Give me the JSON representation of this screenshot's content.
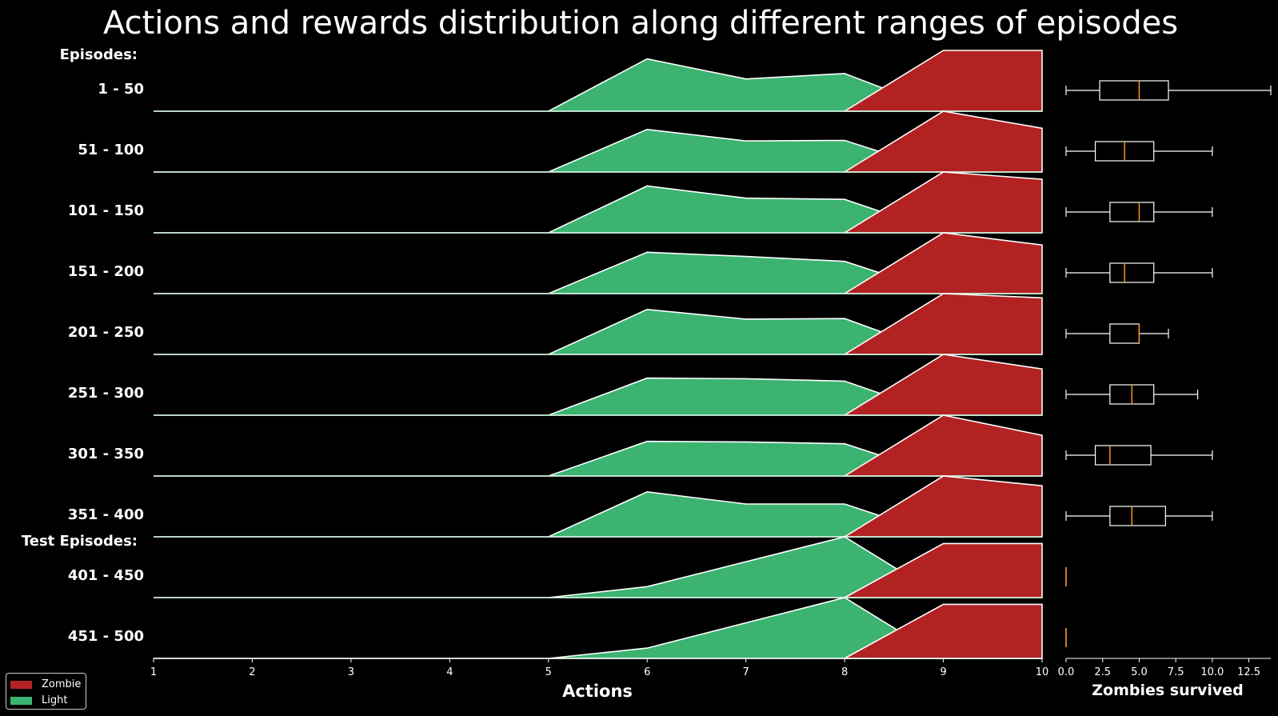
{
  "chart_data": {
    "type": "area",
    "title": "Actions and rewards distribution along different ranges of episodes",
    "xlabel": "Actions",
    "x_ticks": [
      1,
      2,
      3,
      4,
      5,
      6,
      7,
      8,
      9,
      10
    ],
    "xlim": [
      1,
      10
    ],
    "group_headers": {
      "train": "Episodes:",
      "test": "Test Episodes:"
    },
    "colors": {
      "Zombie": "#b22222",
      "Light": "#3cb371",
      "outline": "#ffffff",
      "median": "#ff9f1a",
      "background": "#000000"
    },
    "series_names": [
      "Zombie",
      "Light"
    ],
    "legend_position": "lower-left",
    "ridge_scale_max": 1.0,
    "ridges": [
      {
        "label": "1 - 50",
        "light": {
          "x": [
            1,
            5,
            6,
            7,
            8,
            9,
            10
          ],
          "y": [
            0,
            0,
            0.86,
            0.53,
            0.62,
            0,
            0
          ]
        },
        "zombie": {
          "x": [
            8,
            9,
            10
          ],
          "y": [
            0,
            1.0,
            1.0
          ]
        }
      },
      {
        "label": "51 - 100",
        "light": {
          "x": [
            1,
            5,
            6,
            7,
            8,
            9,
            10
          ],
          "y": [
            0,
            0,
            0.7,
            0.51,
            0.52,
            0,
            0
          ]
        },
        "zombie": {
          "x": [
            8,
            9,
            10
          ],
          "y": [
            0,
            1.0,
            0.72
          ]
        }
      },
      {
        "label": "101 - 150",
        "light": {
          "x": [
            1,
            5,
            6,
            7,
            8,
            9,
            10
          ],
          "y": [
            0,
            0,
            0.77,
            0.57,
            0.55,
            0,
            0
          ]
        },
        "zombie": {
          "x": [
            8,
            9,
            10
          ],
          "y": [
            0,
            1.0,
            0.88
          ]
        }
      },
      {
        "label": "151 - 200",
        "light": {
          "x": [
            1,
            5,
            6,
            7,
            8,
            9,
            10
          ],
          "y": [
            0,
            0,
            0.68,
            0.61,
            0.53,
            0,
            0
          ]
        },
        "zombie": {
          "x": [
            8,
            9,
            10
          ],
          "y": [
            0,
            1.0,
            0.8
          ]
        }
      },
      {
        "label": "201 - 250",
        "light": {
          "x": [
            1,
            5,
            6,
            7,
            8,
            9,
            10
          ],
          "y": [
            0,
            0,
            0.74,
            0.58,
            0.59,
            0,
            0
          ]
        },
        "zombie": {
          "x": [
            8,
            9,
            10
          ],
          "y": [
            0,
            1.0,
            0.93
          ]
        }
      },
      {
        "label": "251 - 300",
        "light": {
          "x": [
            1,
            5,
            6,
            7,
            8,
            9,
            10
          ],
          "y": [
            0,
            0,
            0.61,
            0.6,
            0.56,
            0,
            0
          ]
        },
        "zombie": {
          "x": [
            8,
            9,
            10
          ],
          "y": [
            0,
            1.0,
            0.76
          ]
        }
      },
      {
        "label": "301 - 350",
        "light": {
          "x": [
            1,
            5,
            6,
            7,
            8,
            9,
            10
          ],
          "y": [
            0,
            0,
            0.57,
            0.56,
            0.53,
            0,
            0
          ]
        },
        "zombie": {
          "x": [
            8,
            9,
            10
          ],
          "y": [
            0,
            1.0,
            0.67
          ]
        }
      },
      {
        "label": "351 - 400",
        "light": {
          "x": [
            1,
            5,
            6,
            7,
            8,
            9,
            10
          ],
          "y": [
            0,
            0,
            0.74,
            0.54,
            0.54,
            0,
            0
          ]
        },
        "zombie": {
          "x": [
            8,
            9,
            10
          ],
          "y": [
            0,
            1.0,
            0.84
          ]
        }
      },
      {
        "label": "401 - 450",
        "light": {
          "x": [
            1,
            5,
            6,
            8,
            9,
            10
          ],
          "y": [
            0,
            0,
            0.18,
            1.0,
            0,
            0
          ]
        },
        "zombie": {
          "x": [
            8,
            9,
            10
          ],
          "y": [
            0,
            0.89,
            0.89
          ]
        }
      },
      {
        "label": "451 - 500",
        "light": {
          "x": [
            1,
            5,
            6,
            8,
            9,
            10
          ],
          "y": [
            0,
            0,
            0.17,
            1.0,
            0,
            0
          ]
        },
        "zombie": {
          "x": [
            8,
            9,
            10
          ],
          "y": [
            0,
            0.89,
            0.89
          ]
        }
      }
    ],
    "boxplot": {
      "xlabel": "Zombies survived",
      "x_ticks": [
        0.0,
        2.5,
        5.0,
        7.5,
        10.0,
        12.5
      ],
      "xlim": [
        0,
        14
      ],
      "boxes": [
        {
          "label": "1 - 50",
          "min": 0,
          "q1": 2.3,
          "median": 5,
          "q3": 7,
          "max": 14
        },
        {
          "label": "51 - 100",
          "min": 0,
          "q1": 2,
          "median": 4,
          "q3": 6,
          "max": 10
        },
        {
          "label": "101 - 150",
          "min": 0,
          "q1": 3,
          "median": 5,
          "q3": 6,
          "max": 10
        },
        {
          "label": "151 - 200",
          "min": 0,
          "q1": 3,
          "median": 4,
          "q3": 6,
          "max": 10
        },
        {
          "label": "201 - 250",
          "min": 0,
          "q1": 3,
          "median": 5,
          "q3": 5,
          "max": 7
        },
        {
          "label": "251 - 300",
          "min": 0,
          "q1": 3,
          "median": 4.5,
          "q3": 6,
          "max": 9
        },
        {
          "label": "301 - 350",
          "min": 0,
          "q1": 2,
          "median": 3,
          "q3": 5.8,
          "max": 10
        },
        {
          "label": "351 - 400",
          "min": 0,
          "q1": 3,
          "median": 4.5,
          "q3": 6.8,
          "max": 10
        },
        {
          "label": "401 - 450",
          "min": 0,
          "q1": 0,
          "median": 0,
          "q3": 0,
          "max": 0
        },
        {
          "label": "451 - 500",
          "min": 0,
          "q1": 0,
          "median": 0,
          "q3": 0,
          "max": 0
        }
      ]
    }
  }
}
